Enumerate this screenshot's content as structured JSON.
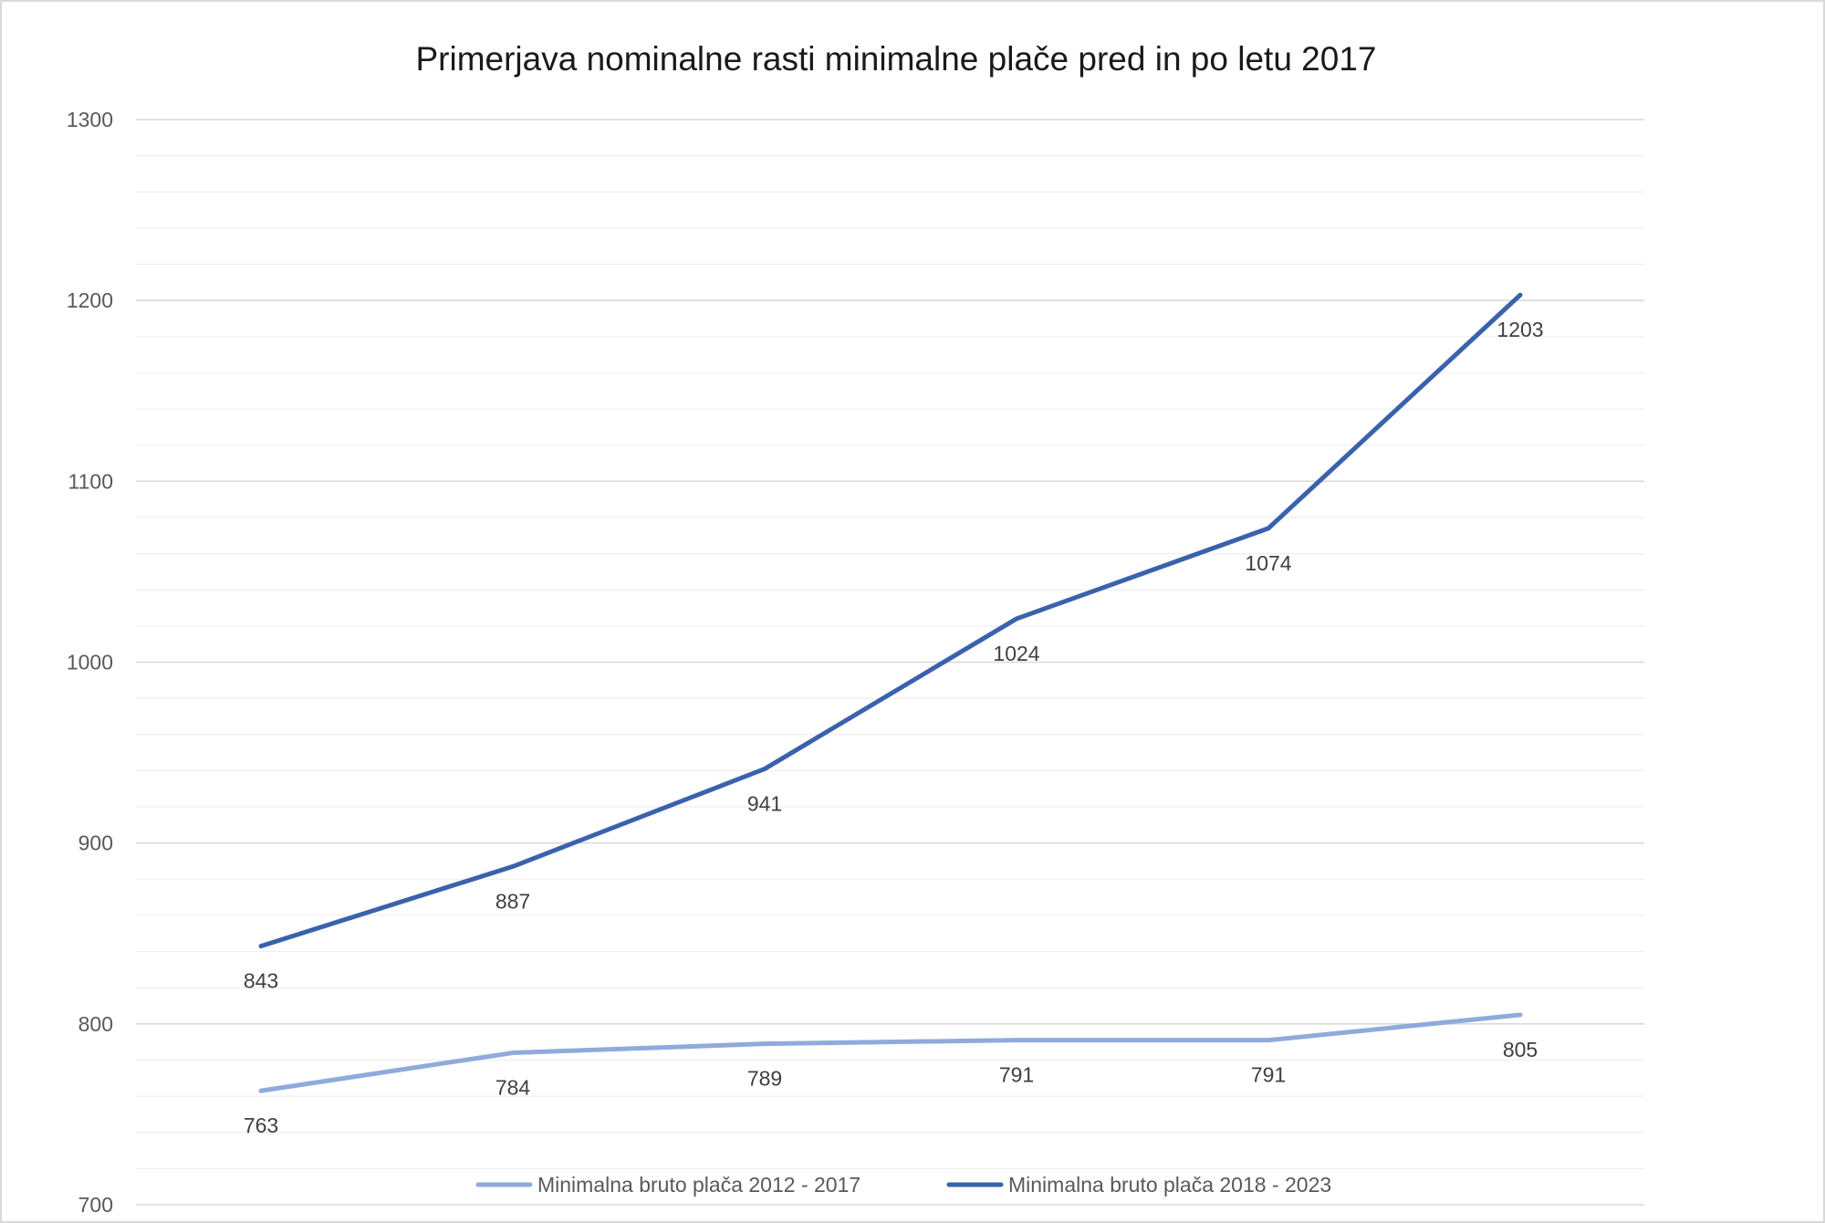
{
  "chart_data": {
    "type": "line",
    "title": "Primerjava nominalne rasti minimalne plače pred in po letu 2017",
    "xlabel": "",
    "ylabel": "",
    "categories": [
      "",
      "",
      "",
      "",
      "",
      ""
    ],
    "ylim": [
      700,
      1300
    ],
    "yticks": [
      700,
      800,
      900,
      1000,
      1100,
      1200,
      1300
    ],
    "minor_grid_step": 20,
    "grid": true,
    "legend_position": "bottom",
    "series": [
      {
        "name": "Minimalna bruto plača 2012 - 2017",
        "color": "#8faadc",
        "values": [
          763,
          784,
          789,
          791,
          791,
          805
        ]
      },
      {
        "name": "Minimalna bruto plača 2018 - 2023",
        "color": "#3a62ac",
        "values": [
          843,
          887,
          941,
          1024,
          1074,
          1203
        ]
      }
    ]
  }
}
